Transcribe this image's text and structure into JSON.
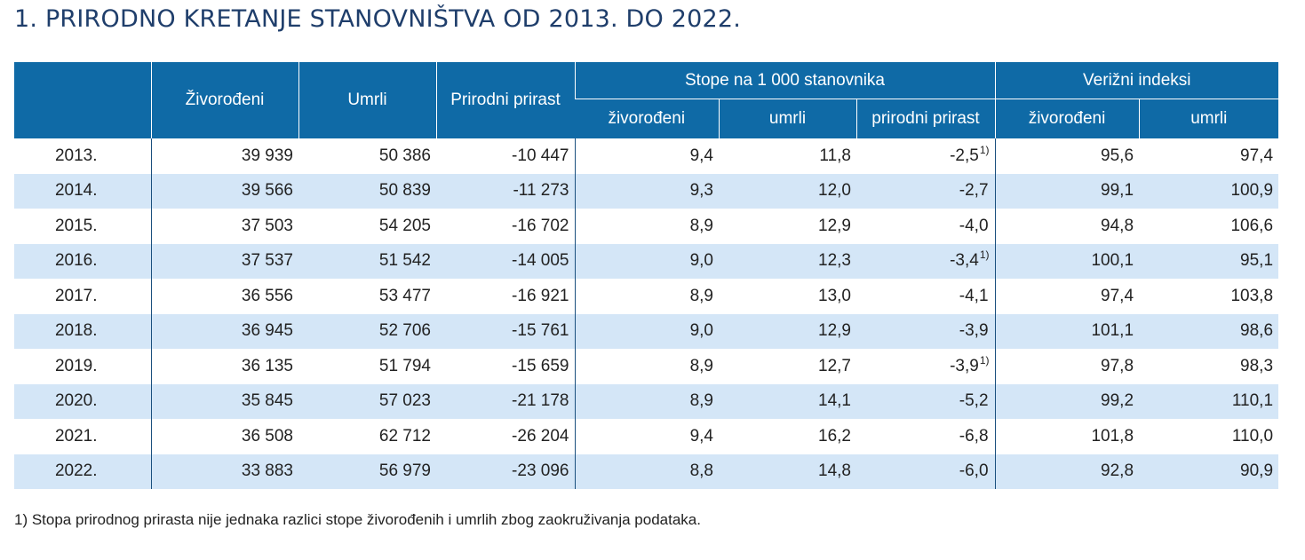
{
  "title": "1. PRIRODNO KRETANJE STANOVNIŠTVA OD 2013. DO 2022.",
  "headers": {
    "year": "",
    "births": "Živorođeni",
    "deaths": "Umrli",
    "natural_increase": "Prirodni prirast",
    "rates_group": "Stope na 1 000 stanovnika",
    "rate_births": "živorođeni",
    "rate_deaths": "umrli",
    "rate_natural": "prirodni prirast",
    "index_group": "Verižni indeksi",
    "index_births": "živorođeni",
    "index_deaths": "umrli"
  },
  "rows": [
    {
      "year": "2013.",
      "births": "39 939",
      "deaths": "50 386",
      "natural": "-10 447",
      "rate_b": "9,4",
      "rate_d": "11,8",
      "rate_n": "-2,5",
      "note": "1)",
      "idx_b": "95,6",
      "idx_d": "97,4"
    },
    {
      "year": "2014.",
      "births": "39 566",
      "deaths": "50 839",
      "natural": "-11 273",
      "rate_b": "9,3",
      "rate_d": "12,0",
      "rate_n": "-2,7",
      "note": "",
      "idx_b": "99,1",
      "idx_d": "100,9"
    },
    {
      "year": "2015.",
      "births": "37 503",
      "deaths": "54 205",
      "natural": "-16 702",
      "rate_b": "8,9",
      "rate_d": "12,9",
      "rate_n": "-4,0",
      "note": "",
      "idx_b": "94,8",
      "idx_d": "106,6"
    },
    {
      "year": "2016.",
      "births": "37 537",
      "deaths": "51 542",
      "natural": "-14 005",
      "rate_b": "9,0",
      "rate_d": "12,3",
      "rate_n": "-3,4",
      "note": "1)",
      "idx_b": "100,1",
      "idx_d": "95,1"
    },
    {
      "year": "2017.",
      "births": "36 556",
      "deaths": "53 477",
      "natural": "-16 921",
      "rate_b": "8,9",
      "rate_d": "13,0",
      "rate_n": "-4,1",
      "note": "",
      "idx_b": "97,4",
      "idx_d": "103,8"
    },
    {
      "year": "2018.",
      "births": "36 945",
      "deaths": "52 706",
      "natural": "-15 761",
      "rate_b": "9,0",
      "rate_d": "12,9",
      "rate_n": "-3,9",
      "note": "",
      "idx_b": "101,1",
      "idx_d": "98,6"
    },
    {
      "year": "2019.",
      "births": "36 135",
      "deaths": "51 794",
      "natural": "-15 659",
      "rate_b": "8,9",
      "rate_d": "12,7",
      "rate_n": "-3,9",
      "note": "1)",
      "idx_b": "97,8",
      "idx_d": "98,3"
    },
    {
      "year": "2020.",
      "births": "35 845",
      "deaths": "57 023",
      "natural": "-21 178",
      "rate_b": "8,9",
      "rate_d": "14,1",
      "rate_n": "-5,2",
      "note": "",
      "idx_b": "99,2",
      "idx_d": "110,1"
    },
    {
      "year": "2021.",
      "births": "36 508",
      "deaths": "62 712",
      "natural": "-26 204",
      "rate_b": "9,4",
      "rate_d": "16,2",
      "rate_n": "-6,8",
      "note": "",
      "idx_b": "101,8",
      "idx_d": "110,0"
    },
    {
      "year": "2022.",
      "births": "33 883",
      "deaths": "56 979",
      "natural": "-23 096",
      "rate_b": "8,8",
      "rate_d": "14,8",
      "rate_n": "-6,0",
      "note": "",
      "idx_b": "92,8",
      "idx_d": "90,9"
    }
  ],
  "footnote": "1) Stopa prirodnog prirasta nije jednaka razlici stope živorođenih i umrlih zbog zaokruživanja podataka.",
  "colors": {
    "header_bg": "#0f6aa6",
    "alt_row": "#d4e6f7",
    "title": "#1f3e6b"
  }
}
